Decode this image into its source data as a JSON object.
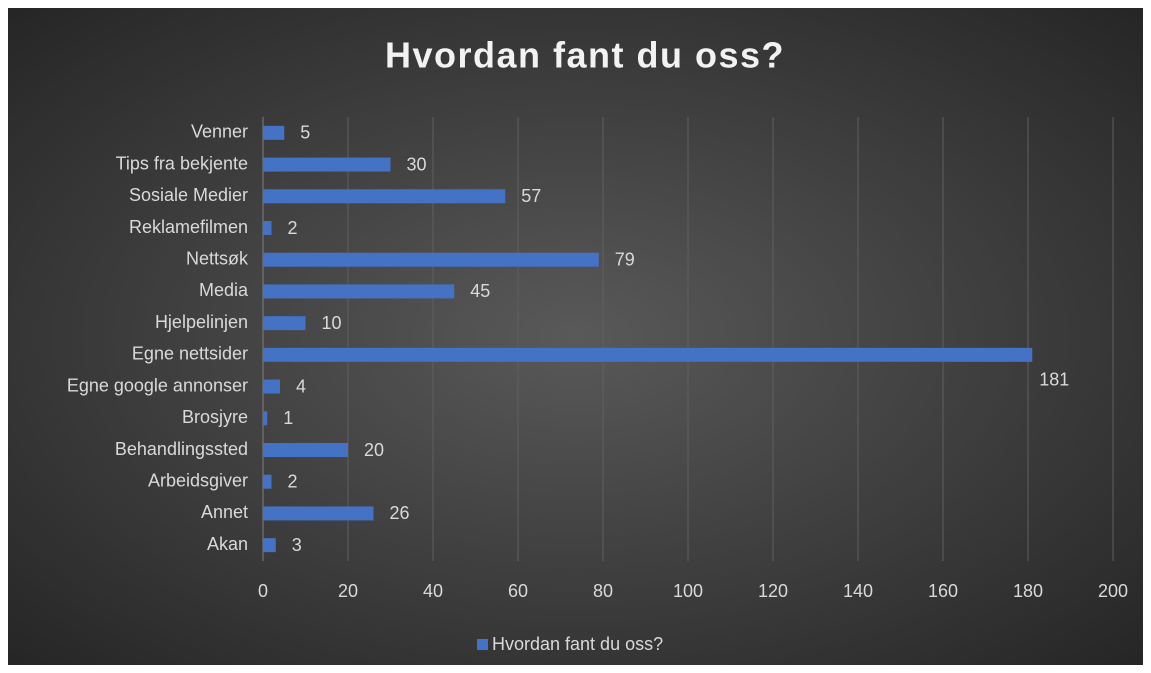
{
  "chart_data": {
    "type": "bar",
    "orientation": "horizontal",
    "title": "Hvordan fant du oss?",
    "categories": [
      "Venner",
      "Tips fra bekjente",
      "Sosiale Medier",
      "Reklamefilmen",
      "Nettsøk",
      "Media",
      "Hjelpelinjen",
      "Egne nettsider",
      "Egne google annonser",
      "Brosjyre",
      "Behandlingssted",
      "Arbeidsgiver",
      "Annet",
      "Akan"
    ],
    "series": [
      {
        "name": "Hvordan fant du oss?",
        "color": "#4472c4",
        "values": [
          5,
          30,
          57,
          2,
          79,
          45,
          10,
          181,
          4,
          1,
          20,
          2,
          26,
          3
        ]
      }
    ],
    "xlim": [
      0,
      200
    ],
    "xticks": [
      0,
      20,
      40,
      60,
      80,
      100,
      120,
      140,
      160,
      180,
      200
    ],
    "grid": true,
    "legend": "bottom"
  }
}
